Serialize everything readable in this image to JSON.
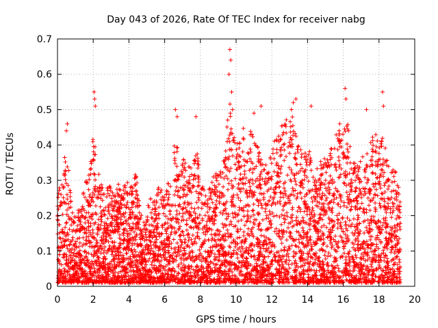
{
  "chart_data": {
    "type": "scatter",
    "title": "Day 043 of 2026, Rate Of TEC Index for receiver nabg",
    "xlabel": "GPS time / hours",
    "ylabel": "ROTI / TECUs",
    "xlim": [
      0,
      20
    ],
    "ylim": [
      0,
      0.7
    ],
    "xticks": [
      "0",
      "2",
      "4",
      "6",
      "8",
      "10",
      "12",
      "14",
      "16",
      "18",
      "20"
    ],
    "yticks": [
      "0",
      "0.1",
      "0.2",
      "0.3",
      "0.4",
      "0.5",
      "0.6",
      "0.7"
    ],
    "grid": true,
    "marker": "+",
    "series_color": "#ff0000",
    "envelope": {
      "x": [
        0.0,
        0.2,
        0.4,
        0.6,
        0.8,
        1.0,
        1.2,
        1.4,
        1.6,
        1.8,
        2.0,
        2.2,
        2.4,
        2.6,
        2.8,
        3.0,
        3.2,
        3.4,
        3.6,
        3.8,
        4.0,
        4.2,
        4.4,
        4.6,
        4.8,
        5.0,
        5.2,
        5.4,
        5.6,
        5.8,
        6.0,
        6.2,
        6.4,
        6.6,
        6.8,
        7.0,
        7.2,
        7.4,
        7.6,
        7.8,
        8.0,
        8.2,
        8.4,
        8.6,
        8.8,
        9.0,
        9.2,
        9.4,
        9.6,
        9.8,
        10.0,
        10.2,
        10.4,
        10.6,
        10.8,
        11.0,
        11.2,
        11.4,
        11.6,
        11.8,
        12.0,
        12.2,
        12.4,
        12.6,
        12.8,
        13.0,
        13.2,
        13.4,
        13.6,
        13.8,
        14.0,
        14.2,
        14.4,
        14.6,
        14.8,
        15.0,
        15.2,
        15.4,
        15.6,
        15.8,
        16.0,
        16.2,
        16.4,
        16.6,
        16.8,
        17.0,
        17.2,
        17.4,
        17.6,
        17.8,
        18.0,
        18.2,
        18.4,
        18.6,
        18.8,
        19.0,
        19.2
      ],
      "upper": [
        0.25,
        0.3,
        0.38,
        0.35,
        0.22,
        0.2,
        0.22,
        0.26,
        0.3,
        0.32,
        0.48,
        0.34,
        0.3,
        0.28,
        0.3,
        0.28,
        0.28,
        0.3,
        0.26,
        0.3,
        0.3,
        0.28,
        0.33,
        0.22,
        0.18,
        0.22,
        0.25,
        0.24,
        0.28,
        0.28,
        0.26,
        0.3,
        0.32,
        0.45,
        0.36,
        0.38,
        0.36,
        0.34,
        0.36,
        0.4,
        0.3,
        0.28,
        0.26,
        0.3,
        0.32,
        0.33,
        0.34,
        0.38,
        0.55,
        0.45,
        0.4,
        0.42,
        0.45,
        0.42,
        0.46,
        0.44,
        0.4,
        0.36,
        0.34,
        0.35,
        0.4,
        0.42,
        0.44,
        0.46,
        0.48,
        0.5,
        0.48,
        0.42,
        0.4,
        0.38,
        0.42,
        0.36,
        0.33,
        0.34,
        0.36,
        0.38,
        0.4,
        0.42,
        0.44,
        0.46,
        0.44,
        0.48,
        0.4,
        0.36,
        0.34,
        0.36,
        0.38,
        0.4,
        0.42,
        0.44,
        0.4,
        0.46,
        0.38,
        0.34,
        0.33,
        0.32,
        0.3
      ]
    },
    "outliers": {
      "x": [
        2.05,
        2.08,
        2.12,
        9.65,
        9.7,
        9.6,
        9.75,
        9.8,
        16.1,
        16.15,
        18.2,
        18.25,
        13.2,
        13.35,
        13.1,
        11.4,
        11.0,
        14.2,
        15.8,
        17.3,
        0.55,
        0.5,
        6.6,
        6.7,
        7.75
      ],
      "y": [
        0.55,
        0.53,
        0.51,
        0.67,
        0.64,
        0.6,
        0.55,
        0.5,
        0.56,
        0.53,
        0.55,
        0.51,
        0.52,
        0.53,
        0.5,
        0.51,
        0.49,
        0.51,
        0.46,
        0.5,
        0.46,
        0.44,
        0.5,
        0.48,
        0.48
      ]
    }
  }
}
